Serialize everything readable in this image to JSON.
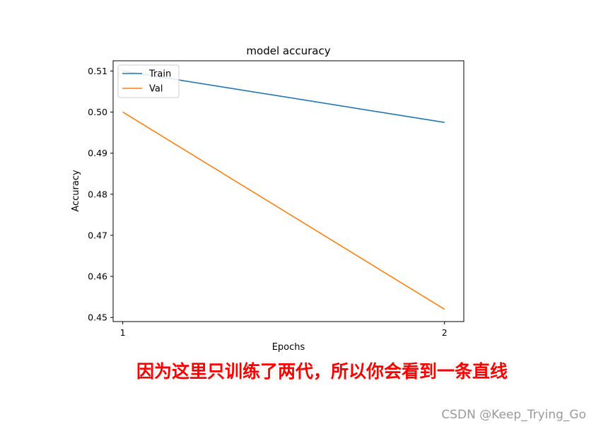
{
  "chart_data": {
    "type": "line",
    "title": "model accuracy",
    "xlabel": "Epochs",
    "ylabel": "Accuracy",
    "x": [
      1,
      2
    ],
    "xticks": [
      1,
      2
    ],
    "xlim": [
      0.97,
      2.06
    ],
    "yticks": [
      0.45,
      0.46,
      0.47,
      0.48,
      0.49,
      0.5,
      0.51
    ],
    "ylim": [
      0.449,
      0.5125
    ],
    "grid": false,
    "legend_position": "top-left",
    "series": [
      {
        "name": "Train",
        "values": [
          0.51,
          0.4975
        ],
        "color": "#1f77b4"
      },
      {
        "name": "Val",
        "values": [
          0.5,
          0.452
        ],
        "color": "#ff7f0e"
      }
    ]
  },
  "annotation": "因为这里只训练了两代，所以你会看到一条直线",
  "watermark": "CSDN @Keep_Trying_Go"
}
